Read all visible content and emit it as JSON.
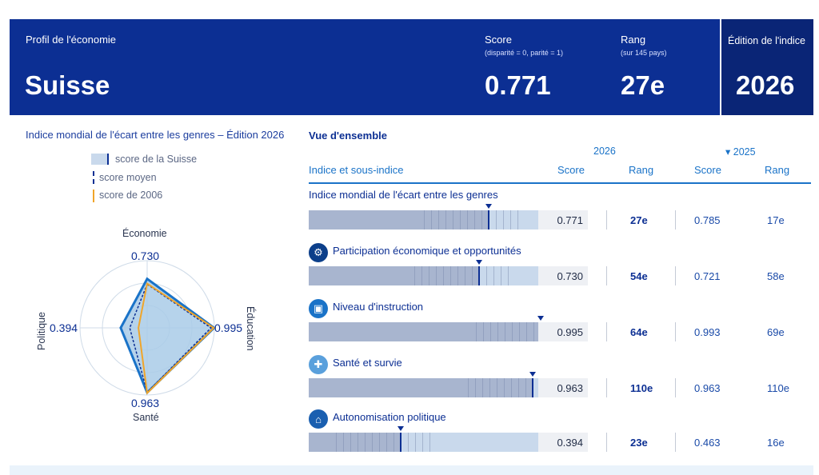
{
  "header": {
    "profile_label": "Profil de l'économie",
    "country": "Suisse",
    "score_label": "Score",
    "score_sub": "(disparité = 0, parité = 1)",
    "score_value": "0.771",
    "rank_label": "Rang",
    "rank_sub": "(sur 145 pays)",
    "rank_value": "27e",
    "edition_label": "Édition de l'indice",
    "edition_value": "2026"
  },
  "left": {
    "title": "Indice mondial de l'écart entre les genres – Édition 2026",
    "legend": [
      {
        "label": "score de la Suisse",
        "color": "#0c2f93"
      },
      {
        "label": "score moyen",
        "color": "#0c2f93"
      },
      {
        "label": "score de 2006",
        "color": "#f0a52a"
      }
    ],
    "radar": {
      "axes": [
        {
          "name": "Économie",
          "value": "0.730"
        },
        {
          "name": "Éducation",
          "value": "0.995"
        },
        {
          "name": "Santé",
          "value": "0.963"
        },
        {
          "name": "Politique",
          "value": "0.394"
        }
      ]
    }
  },
  "right": {
    "title": "Vue d'ensemble",
    "year_current": "2026",
    "year_previous": "▾ 2025",
    "col_index": "Indice et sous-indice",
    "col_score": "Score",
    "col_rank": "Rang",
    "rows": [
      {
        "title": "Indice mondial de l'écart entre les genres",
        "score": "0.771",
        "fraction": 0.771,
        "rank": "27e",
        "score25": "0.785",
        "rank25": "17e",
        "icon": "none"
      },
      {
        "title": "Participation économique et opportunités",
        "score": "0.730",
        "fraction": 0.73,
        "rank": "54e",
        "score25": "0.721",
        "rank25": "58e",
        "icon": "economy-icon"
      },
      {
        "title": "Niveau d'instruction",
        "score": "0.995",
        "fraction": 0.995,
        "rank": "64e",
        "score25": "0.993",
        "rank25": "69e",
        "icon": "book-icon"
      },
      {
        "title": "Santé et survie",
        "score": "0.963",
        "fraction": 0.963,
        "rank": "110e",
        "score25": "0.963",
        "rank25": "110e",
        "icon": "health-cross-icon"
      },
      {
        "title": "Autonomisation politique",
        "score": "0.394",
        "fraction": 0.394,
        "rank": "23e",
        "score25": "0.463",
        "rank25": "16e",
        "icon": "parliament-icon"
      }
    ]
  }
}
